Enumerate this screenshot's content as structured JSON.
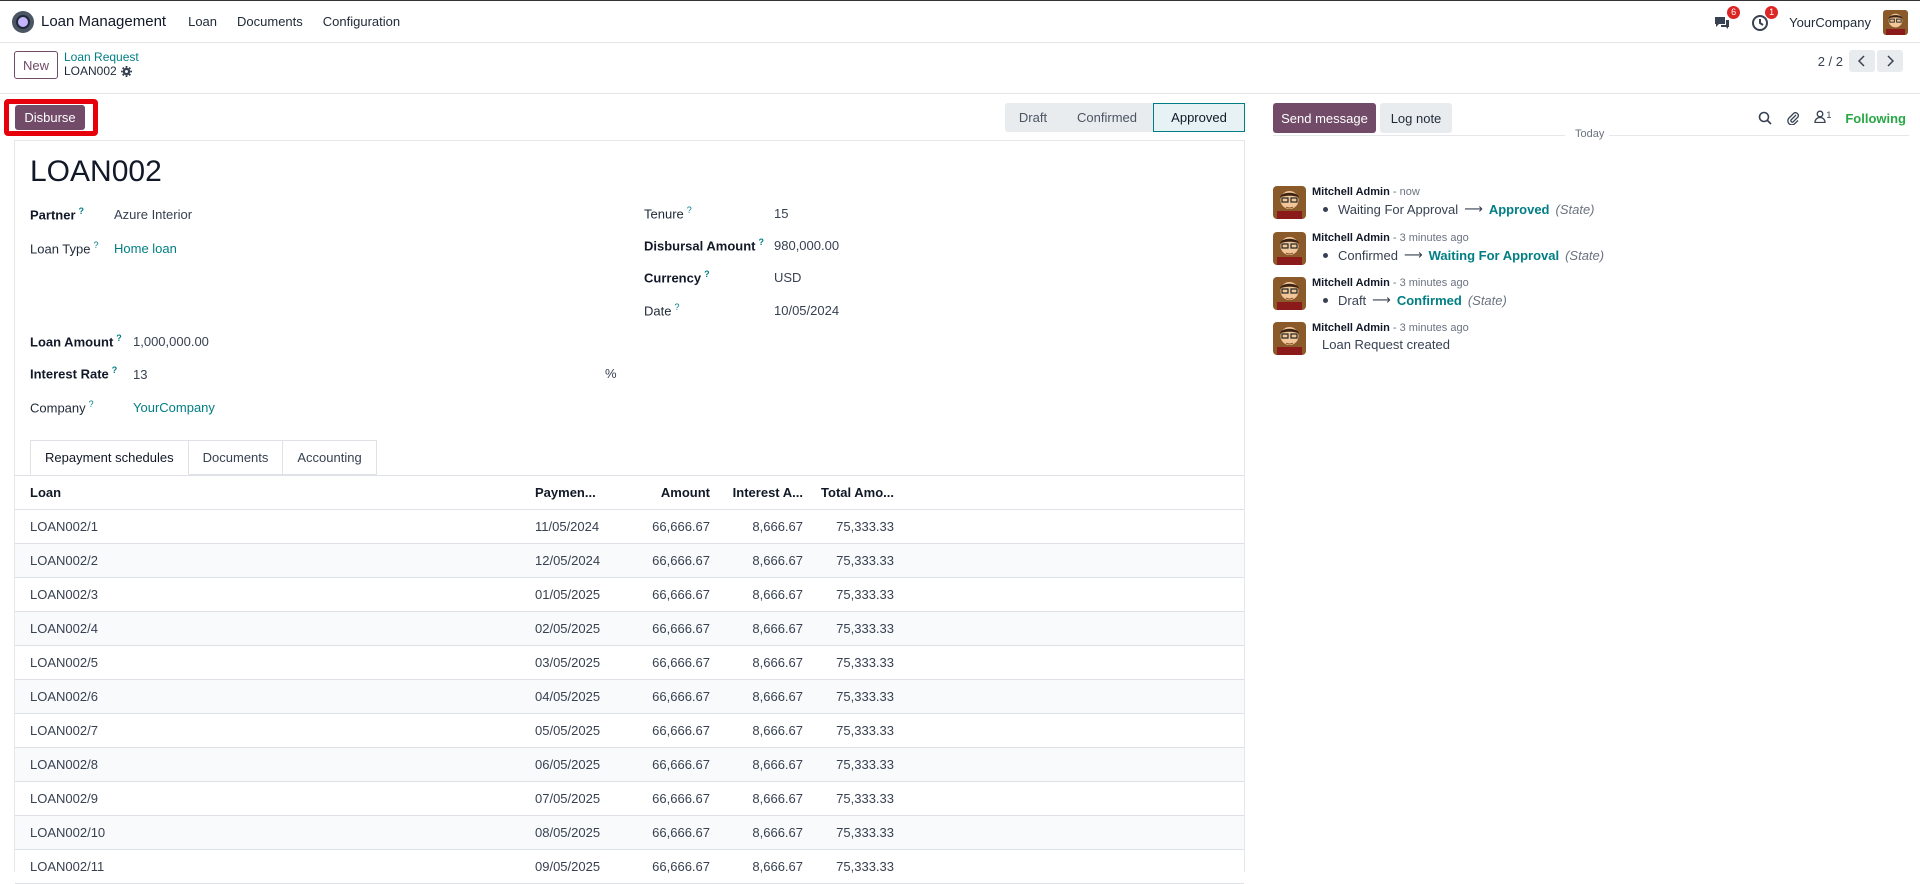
{
  "navbar": {
    "app_name": "Loan Management",
    "menus": [
      "Loan",
      "Documents",
      "Configuration"
    ],
    "messages_badge": "6",
    "activities_badge": "1",
    "company": "YourCompany"
  },
  "control_panel": {
    "new_label": "New",
    "breadcrumb_parent": "Loan Request",
    "breadcrumb_current": "LOAN002",
    "pager": "2 / 2"
  },
  "statusbar": {
    "disburse_label": "Disburse",
    "stages": [
      "Draft",
      "Confirmed",
      "Approved"
    ],
    "active_stage": "Approved"
  },
  "form": {
    "name": "LOAN002",
    "partner_label": "Partner",
    "partner": "Azure Interior",
    "loan_type_label": "Loan Type",
    "loan_type": "Home loan",
    "loan_amount_label": "Loan Amount",
    "loan_amount": "1,000,000.00",
    "interest_rate_label": "Interest Rate",
    "interest_rate": "13",
    "interest_unit": "%",
    "company_label": "Company",
    "company": "YourCompany",
    "tenure_label": "Tenure",
    "tenure": "15",
    "disbursal_label": "Disbursal Amount",
    "disbursal": "980,000.00",
    "currency_label": "Currency",
    "currency": "USD",
    "date_label": "Date",
    "date": "10/05/2024",
    "help_mark": "?"
  },
  "tabs": [
    "Repayment schedules",
    "Documents",
    "Accounting"
  ],
  "table": {
    "headers": [
      "Loan",
      "Paymen...",
      "Amount",
      "Interest A...",
      "Total Amo..."
    ],
    "rows": [
      [
        "LOAN002/1",
        "11/05/2024",
        "66,666.67",
        "8,666.67",
        "75,333.33"
      ],
      [
        "LOAN002/2",
        "12/05/2024",
        "66,666.67",
        "8,666.67",
        "75,333.33"
      ],
      [
        "LOAN002/3",
        "01/05/2025",
        "66,666.67",
        "8,666.67",
        "75,333.33"
      ],
      [
        "LOAN002/4",
        "02/05/2025",
        "66,666.67",
        "8,666.67",
        "75,333.33"
      ],
      [
        "LOAN002/5",
        "03/05/2025",
        "66,666.67",
        "8,666.67",
        "75,333.33"
      ],
      [
        "LOAN002/6",
        "04/05/2025",
        "66,666.67",
        "8,666.67",
        "75,333.33"
      ],
      [
        "LOAN002/7",
        "05/05/2025",
        "66,666.67",
        "8,666.67",
        "75,333.33"
      ],
      [
        "LOAN002/8",
        "06/05/2025",
        "66,666.67",
        "8,666.67",
        "75,333.33"
      ],
      [
        "LOAN002/9",
        "07/05/2025",
        "66,666.67",
        "8,666.67",
        "75,333.33"
      ],
      [
        "LOAN002/10",
        "08/05/2025",
        "66,666.67",
        "8,666.67",
        "75,333.33"
      ],
      [
        "LOAN002/11",
        "09/05/2025",
        "66,666.67",
        "8,666.67",
        "75,333.33"
      ]
    ]
  },
  "chatter": {
    "send_label": "Send message",
    "log_label": "Log note",
    "followers_count": "1",
    "following_label": "Following",
    "today_label": "Today",
    "messages": [
      {
        "author": "Mitchell Admin",
        "time": "- now",
        "old": "Waiting For Approval",
        "new": "Approved",
        "field": "(State)"
      },
      {
        "author": "Mitchell Admin",
        "time": "- 3 minutes ago",
        "old": "Confirmed",
        "new": "Waiting For Approval",
        "field": "(State)"
      },
      {
        "author": "Mitchell Admin",
        "time": "- 3 minutes ago",
        "old": "Draft",
        "new": "Confirmed",
        "field": "(State)"
      },
      {
        "author": "Mitchell Admin",
        "time": "- 3 minutes ago",
        "text": "Loan Request created"
      }
    ]
  },
  "colors": {
    "primary": "#714B67",
    "link": "#017e84",
    "highlight": "#e5000b",
    "following": "#28a745"
  }
}
